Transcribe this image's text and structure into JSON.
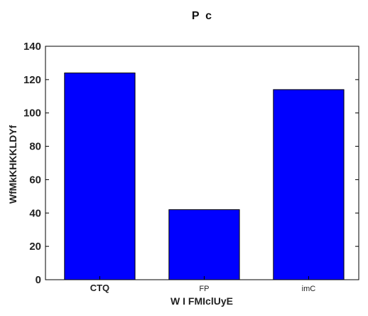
{
  "chart_data": {
    "type": "bar",
    "title": "P  c",
    "xlabel": "W I FMIclUyE",
    "ylabel": "WfMkKHKKLDYf",
    "categories": [
      "CTQ",
      "FP",
      "imC"
    ],
    "values": [
      124,
      42,
      114
    ],
    "ylim": [
      0,
      140
    ],
    "yticks": [
      0,
      20,
      40,
      60,
      80,
      100,
      120,
      140
    ],
    "bar_color": "#0000ff",
    "grid": false,
    "legend": "none"
  }
}
